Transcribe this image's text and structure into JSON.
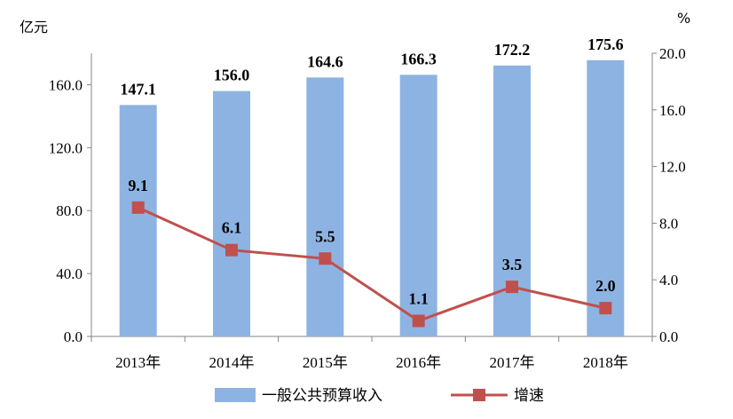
{
  "chart_data": {
    "type": "bar+line",
    "categories": [
      "2013年",
      "2014年",
      "2015年",
      "2016年",
      "2017年",
      "2018年"
    ],
    "series": [
      {
        "name": "一般公共预算收入",
        "type": "bar",
        "axis": "left",
        "values": [
          147.1,
          156.0,
          164.6,
          166.3,
          172.2,
          175.6
        ],
        "labels": [
          "147.1",
          "156.0",
          "164.6",
          "166.3",
          "172.2",
          "175.6"
        ],
        "color": "#8DB3E2"
      },
      {
        "name": "增速",
        "type": "line",
        "axis": "right",
        "values": [
          9.1,
          6.1,
          5.5,
          1.1,
          3.5,
          2.0
        ],
        "labels": [
          "9.1",
          "6.1",
          "5.5",
          "1.1",
          "3.5",
          "2.0"
        ],
        "color": "#C0504D"
      }
    ],
    "y_left": {
      "unit": "亿元",
      "range": [
        0,
        180
      ],
      "ticks": [
        "0.0",
        "40.0",
        "80.0",
        "120.0",
        "160.0"
      ],
      "tick_values": [
        0,
        40,
        80,
        120,
        160
      ]
    },
    "y_right": {
      "unit": "%",
      "range": [
        0,
        20
      ],
      "ticks": [
        "0.0",
        "4.0",
        "8.0",
        "12.0",
        "16.0",
        "20.0"
      ],
      "tick_values": [
        0,
        4,
        8,
        12,
        16,
        20
      ]
    },
    "grid": false,
    "legend_position": "bottom"
  }
}
